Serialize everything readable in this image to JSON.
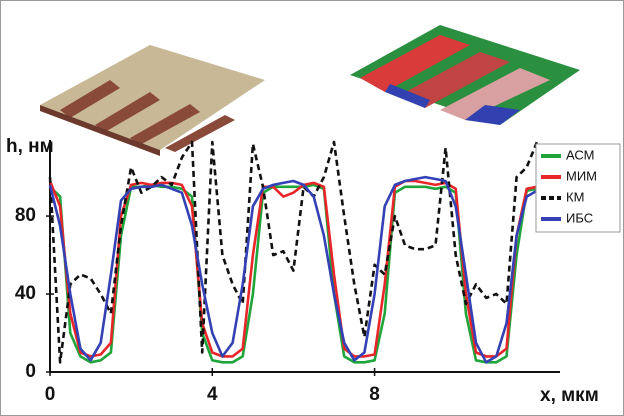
{
  "chart_data": {
    "type": "line",
    "ylabel": "h, нм",
    "xlabel": "x, мкм",
    "xlim": [
      0,
      12.2
    ],
    "ylim": [
      0,
      118
    ],
    "xticks": [
      0,
      4,
      8
    ],
    "yticks": [
      0,
      40,
      80
    ],
    "legend": "top-right",
    "x": [
      0,
      0.25,
      0.5,
      0.75,
      1,
      1.25,
      1.5,
      1.75,
      2,
      2.25,
      2.5,
      2.75,
      3,
      3.25,
      3.5,
      3.75,
      4,
      4.25,
      4.5,
      4.75,
      5,
      5.25,
      5.5,
      5.75,
      6,
      6.25,
      6.5,
      6.75,
      7,
      7.25,
      7.5,
      7.75,
      8,
      8.25,
      8.5,
      8.75,
      9,
      9.25,
      9.5,
      9.75,
      10,
      10.25,
      10.5,
      10.75,
      11,
      11.25,
      11.5,
      11.75,
      12
    ],
    "series": [
      {
        "name": "АСМ",
        "color": "#1fa53a",
        "dashed": false,
        "values": [
          95,
          90,
          20,
          8,
          5,
          6,
          10,
          70,
          95,
          95,
          96,
          95,
          95,
          94,
          90,
          20,
          6,
          5,
          5,
          8,
          40,
          92,
          95,
          95,
          95,
          95,
          96,
          94,
          40,
          8,
          5,
          5,
          6,
          30,
          92,
          95,
          95,
          95,
          94,
          95,
          92,
          30,
          6,
          5,
          5,
          8,
          60,
          93,
          94
        ]
      },
      {
        "name": "МИМ",
        "color": "#e8262a",
        "dashed": false,
        "values": [
          98,
          85,
          30,
          10,
          8,
          9,
          15,
          80,
          96,
          97,
          96,
          97,
          97,
          96,
          85,
          25,
          10,
          8,
          8,
          12,
          60,
          95,
          95,
          90,
          92,
          96,
          97,
          95,
          50,
          12,
          8,
          8,
          9,
          45,
          95,
          98,
          98,
          97,
          96,
          97,
          94,
          40,
          10,
          8,
          8,
          12,
          70,
          94,
          95
        ]
      },
      {
        "name": "КМ",
        "color": "#111111",
        "dashed": true,
        "values": [
          100,
          5,
          45,
          50,
          48,
          40,
          30,
          75,
          105,
          92,
          95,
          100,
          96,
          110,
          118,
          10,
          118,
          60,
          45,
          35,
          117,
          95,
          60,
          62,
          52,
          95,
          90,
          100,
          118,
          80,
          45,
          18,
          55,
          50,
          80,
          65,
          63,
          63,
          65,
          115,
          60,
          35,
          45,
          38,
          40,
          35,
          100,
          105,
          118
        ]
      },
      {
        "name": "ИБС",
        "color": "#3341b5",
        "dashed": false,
        "values": [
          96,
          75,
          40,
          12,
          6,
          15,
          50,
          88,
          94,
          95,
          95,
          96,
          94,
          92,
          75,
          45,
          20,
          8,
          15,
          45,
          85,
          94,
          96,
          97,
          98,
          96,
          90,
          70,
          40,
          15,
          6,
          10,
          40,
          85,
          96,
          98,
          99,
          100,
          99,
          98,
          85,
          50,
          15,
          5,
          8,
          25,
          70,
          90,
          93
        ]
      }
    ]
  }
}
